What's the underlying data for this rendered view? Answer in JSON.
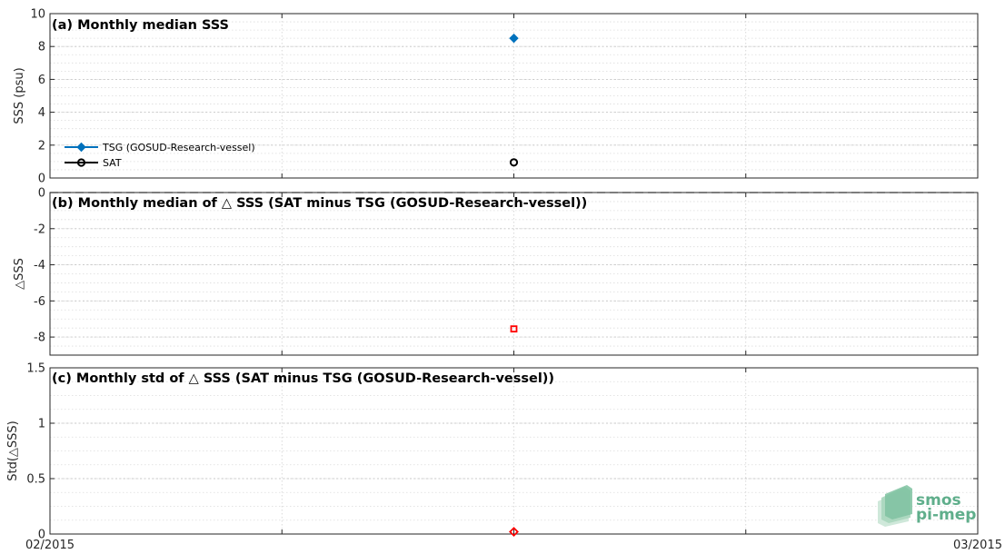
{
  "chart_data": [
    {
      "type": "scatter",
      "title": "(a) Monthly median SSS",
      "ylabel": "SSS (psu)",
      "ylim": [
        0,
        10
      ],
      "yticks": [
        0,
        2,
        4,
        6,
        8,
        10
      ],
      "xlim": [
        "2015-02-01",
        "2015-03-01"
      ],
      "grid": true,
      "legend": "bottom-left",
      "series": [
        {
          "name": "TSG (GOSUD-Research-vessel)",
          "color": "#0072BD",
          "marker": "diamond",
          "points": [
            {
              "x": "2015-02-15",
              "y": 8.5
            }
          ]
        },
        {
          "name": "SAT",
          "color": "#000000",
          "marker": "circle",
          "points": [
            {
              "x": "2015-02-15",
              "y": 0.95
            }
          ]
        }
      ]
    },
    {
      "type": "scatter",
      "title": "(b) Monthly median of △ SSS (SAT minus TSG (GOSUD-Research-vessel))",
      "ylabel": "△SSS",
      "ylim": [
        -9,
        0
      ],
      "yticks": [
        -8,
        -6,
        -4,
        -2,
        0
      ],
      "xlim": [
        "2015-02-01",
        "2015-03-01"
      ],
      "grid": true,
      "reference_line": 0,
      "series": [
        {
          "color": "#FF0000",
          "marker": "square",
          "points": [
            {
              "x": "2015-02-15",
              "y": -7.55
            }
          ]
        }
      ]
    },
    {
      "type": "scatter",
      "title": "(c) Monthly std of △ SSS (SAT minus TSG (GOSUD-Research-vessel))",
      "ylabel": "Std(△SSS)",
      "ylim": [
        0,
        1.5
      ],
      "yticks": [
        0,
        0.5,
        1,
        1.5
      ],
      "xlim": [
        "2015-02-01",
        "2015-03-01"
      ],
      "grid": true,
      "series": [
        {
          "color": "#FF0000",
          "marker": "diamond",
          "points": [
            {
              "x": "2015-02-15",
              "y": 0.02
            }
          ]
        }
      ]
    }
  ],
  "x_tick_labels": {
    "start": "02/2015",
    "end": "03/2015"
  },
  "logo": {
    "line1": "smos",
    "line2": "pi-mep",
    "color": "#5fae8b"
  }
}
